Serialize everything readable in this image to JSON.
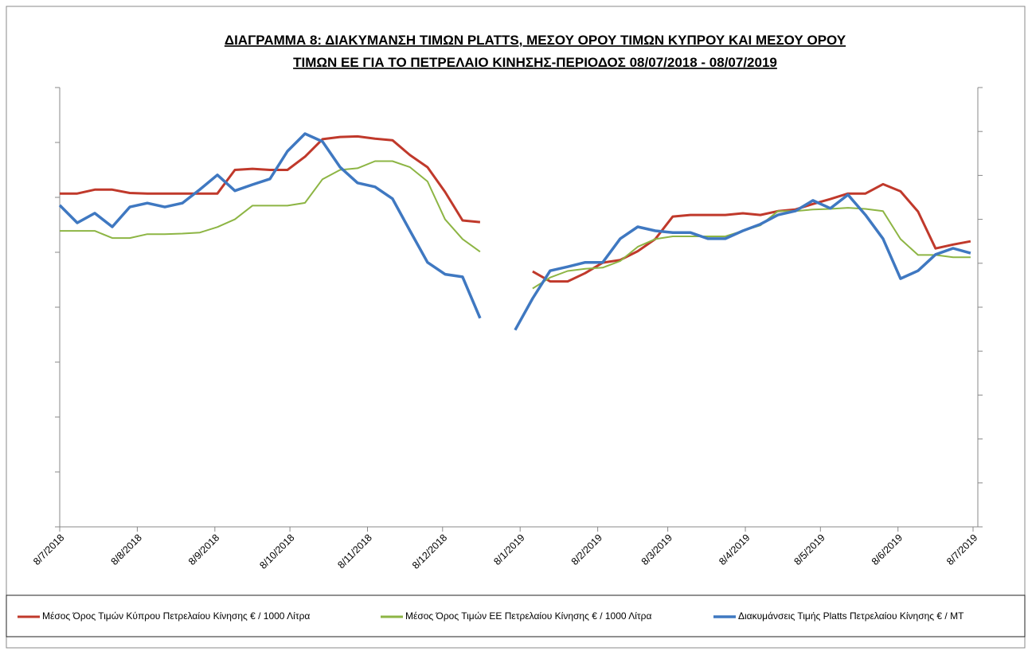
{
  "chart_data": {
    "type": "line",
    "title": [
      "ΔΙΑΓΡΑΜΜΑ 8: ΔΙΑΚΥΜΑΝΣΗ ΤΙΜΩΝ PLATTS, ΜΕΣΟΥ ΟΡΟΥ ΤΙΜΩΝ ΚΥΠΡΟΥ ΚΑΙ ΜΕΣΟΥ ΟΡΟΥ",
      "ΤΙΜΩΝ ΕΕ ΓΙΑ ΤΟ ΠΕΤΡΕΛΑΙΟ ΚΙΝΗΣΗΣ-ΠΕΡΙΟΔΟΣ  08/07/2018 - 08/07/2019"
    ],
    "x": [
      "2018-07-08",
      "2018-07-15",
      "2018-07-22",
      "2018-07-29",
      "2018-08-05",
      "2018-08-12",
      "2018-08-19",
      "2018-08-26",
      "2018-09-02",
      "2018-09-09",
      "2018-09-16",
      "2018-09-23",
      "2018-09-30",
      "2018-10-07",
      "2018-10-14",
      "2018-10-21",
      "2018-10-28",
      "2018-11-04",
      "2018-11-11",
      "2018-11-18",
      "2018-11-25",
      "2018-12-02",
      "2018-12-09",
      "2018-12-16",
      "2018-12-23",
      "2018-12-30",
      "2019-01-06",
      "2019-01-13",
      "2019-01-20",
      "2019-01-27",
      "2019-02-03",
      "2019-02-10",
      "2019-02-17",
      "2019-02-24",
      "2019-03-03",
      "2019-03-10",
      "2019-03-17",
      "2019-03-24",
      "2019-03-31",
      "2019-04-07",
      "2019-04-14",
      "2019-04-21",
      "2019-04-28",
      "2019-05-05",
      "2019-05-12",
      "2019-05-19",
      "2019-05-26",
      "2019-06-02",
      "2019-06-09",
      "2019-06-16",
      "2019-06-23",
      "2019-06-30",
      "2019-07-07"
    ],
    "xlim": [
      "2018-07-08",
      "2019-07-08"
    ],
    "xticks": [
      {
        "value": "2018-07-08",
        "label": "8/7/2018"
      },
      {
        "value": "2018-08-08",
        "label": "8/8/2018"
      },
      {
        "value": "2018-09-08",
        "label": "8/9/2018"
      },
      {
        "value": "2018-10-08",
        "label": "8/10/2018"
      },
      {
        "value": "2018-11-08",
        "label": "8/11/2018"
      },
      {
        "value": "2018-12-08",
        "label": "8/12/2018"
      },
      {
        "value": "2019-01-08",
        "label": "8/1/2019"
      },
      {
        "value": "2019-02-08",
        "label": "8/2/2019"
      },
      {
        "value": "2019-03-08",
        "label": "8/3/2019"
      },
      {
        "value": "2019-04-08",
        "label": "8/4/2019"
      },
      {
        "value": "2019-05-08",
        "label": "8/5/2019"
      },
      {
        "value": "2019-06-08",
        "label": "8/6/2019"
      },
      {
        "value": "2019-07-08",
        "label": "8/7/2019"
      }
    ],
    "ylim": [
      0,
      800
    ],
    "yticks": [
      0,
      100,
      200,
      300,
      400,
      500,
      600,
      700,
      800
    ],
    "y2lim": [
      0,
      1000
    ],
    "y2ticks": [
      0,
      100,
      200,
      300,
      400,
      500,
      600,
      700,
      800,
      900,
      1000
    ],
    "legend": "bottom",
    "series": [
      {
        "name": "Μέσος Όρος Τιμών Κύπρου Πετρελαίου Κίνησης  € / 1000 Λίτρα",
        "color": "#c0392b",
        "axis": "y",
        "values": [
          607,
          607,
          614,
          614,
          608,
          607,
          607,
          607,
          607,
          607,
          650,
          652,
          650,
          650,
          674,
          706,
          710,
          711,
          707,
          704,
          677,
          655,
          610,
          558,
          555,
          null,
          null,
          465,
          447,
          447,
          462,
          481,
          486,
          502,
          524,
          565,
          568,
          568,
          568,
          571,
          568,
          575,
          578,
          588,
          597,
          607,
          607,
          624,
          611,
          574,
          507,
          514,
          520
        ]
      },
      {
        "name": "Μέσος Όρος Τιμών ΕΕ Πετρελαίου Κίνησης  € / 1000 Λίτρα",
        "color": "#8db544",
        "axis": "y",
        "values": [
          539,
          539,
          539,
          526,
          526,
          533,
          533,
          534,
          536,
          546,
          560,
          585,
          585,
          585,
          590,
          633,
          650,
          653,
          666,
          666,
          655,
          629,
          560,
          524,
          501,
          null,
          null,
          434,
          454,
          466,
          470,
          472,
          484,
          510,
          524,
          529,
          529,
          529,
          529,
          539,
          549,
          575,
          575,
          578,
          579,
          581,
          579,
          575,
          524,
          495,
          495,
          491,
          491
        ]
      },
      {
        "name": "Διακυμάνσεις Τιμής Platts Πετρελαίου Κίνησης € / ΜΤ",
        "color": "#3f78c1",
        "axis": "y2",
        "values": [
          732,
          692,
          714,
          683,
          728,
          737,
          728,
          737,
          768,
          801,
          765,
          779,
          792,
          855,
          895,
          877,
          819,
          783,
          774,
          747,
          674,
          602,
          575,
          569,
          475,
          null,
          448,
          520,
          583,
          592,
          602,
          602,
          656,
          683,
          674,
          670,
          670,
          656,
          656,
          674,
          689,
          710,
          719,
          743,
          725,
          756,
          710,
          656,
          565,
          583,
          620,
          634,
          623
        ]
      }
    ]
  }
}
